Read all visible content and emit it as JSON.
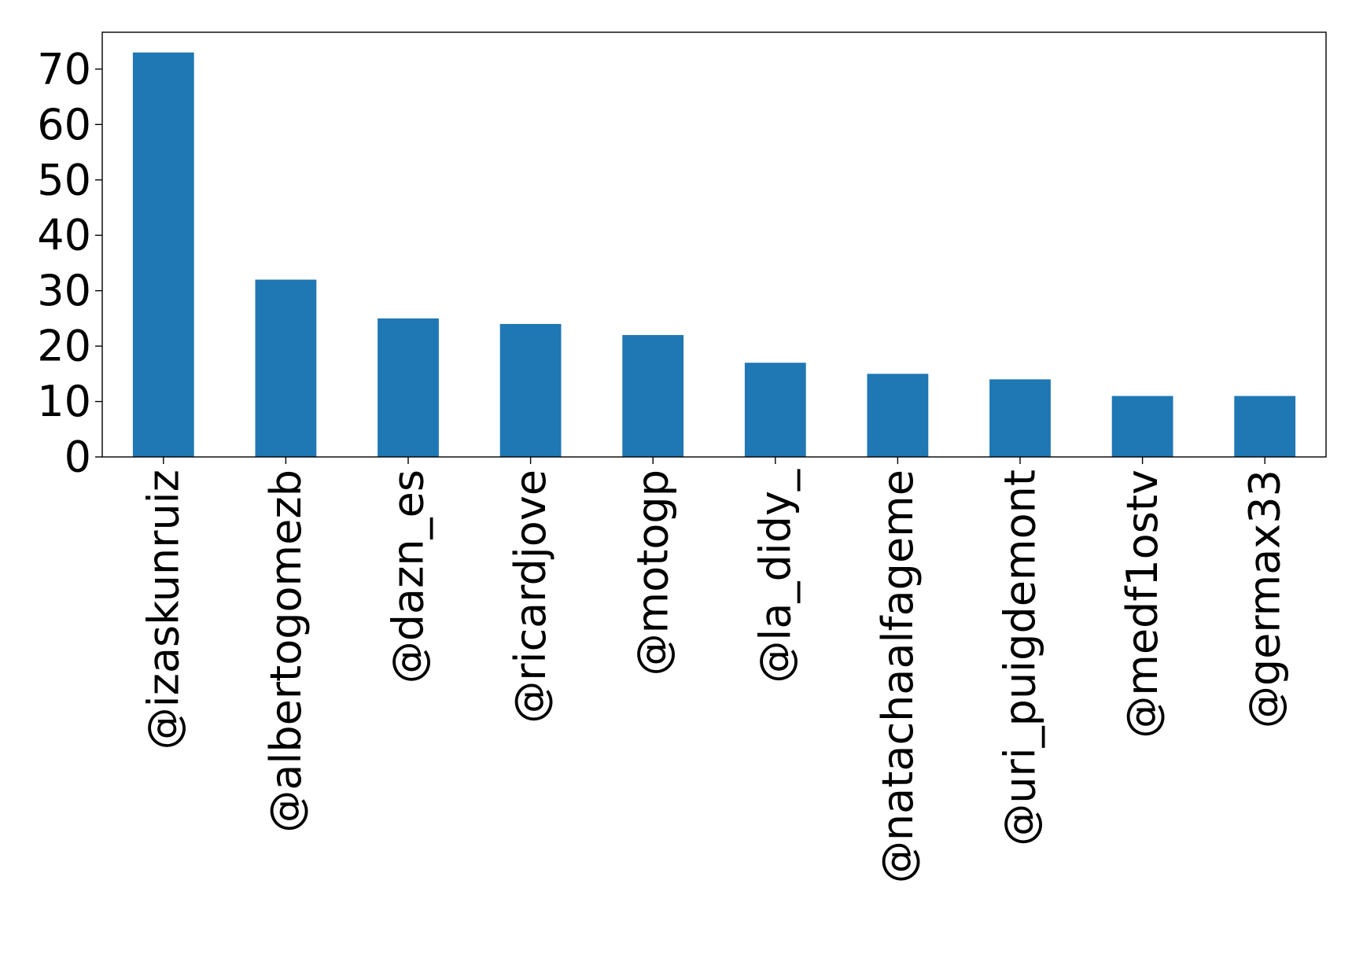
{
  "chart_data": {
    "type": "bar",
    "title": "",
    "xlabel": "",
    "ylabel": "",
    "categories": [
      "@izaskunruiz",
      "@albertogomezb",
      "@dazn_es",
      "@ricardjove",
      "@motogp",
      "@la_didy_",
      "@natachaalfageme",
      "@uri_puigdemont",
      "@medf1ostv",
      "@germax33"
    ],
    "values": [
      73,
      32,
      25,
      24,
      22,
      17,
      15,
      14,
      11,
      11
    ],
    "yticks": [
      0,
      10,
      20,
      30,
      40,
      50,
      60,
      70
    ],
    "ylim": [
      0,
      76.65
    ],
    "bar_color": "#1f77b4",
    "grid": false,
    "legend": "none"
  }
}
